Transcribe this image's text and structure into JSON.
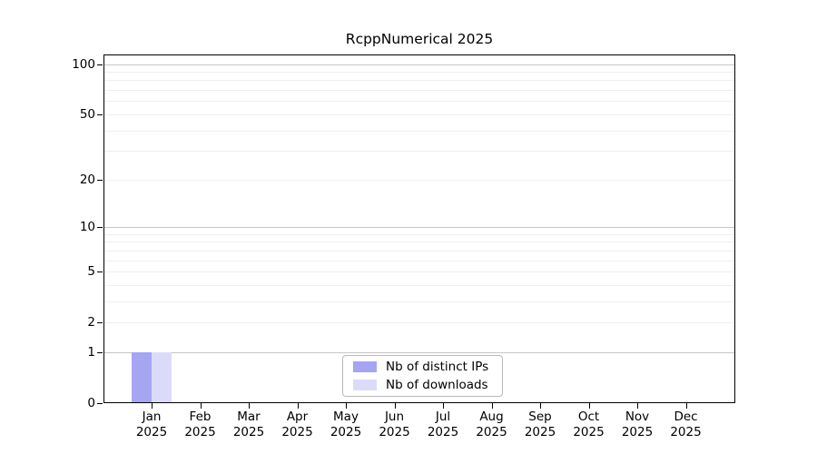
{
  "chart_data": {
    "type": "bar",
    "title": "RcppNumerical 2025",
    "x_labels": [
      {
        "month": "Jan",
        "year": "2025"
      },
      {
        "month": "Feb",
        "year": "2025"
      },
      {
        "month": "Mar",
        "year": "2025"
      },
      {
        "month": "Apr",
        "year": "2025"
      },
      {
        "month": "May",
        "year": "2025"
      },
      {
        "month": "Jun",
        "year": "2025"
      },
      {
        "month": "Jul",
        "year": "2025"
      },
      {
        "month": "Aug",
        "year": "2025"
      },
      {
        "month": "Sep",
        "year": "2025"
      },
      {
        "month": "Oct",
        "year": "2025"
      },
      {
        "month": "Nov",
        "year": "2025"
      },
      {
        "month": "Dec",
        "year": "2025"
      }
    ],
    "series": [
      {
        "name": "Nb of distinct IPs",
        "color": "#a5a5f2",
        "values": [
          1,
          0,
          0,
          0,
          0,
          0,
          0,
          0,
          0,
          0,
          0,
          0
        ]
      },
      {
        "name": "Nb of downloads",
        "color": "#dbdbf9",
        "values": [
          1,
          0,
          0,
          0,
          0,
          0,
          0,
          0,
          0,
          0,
          0,
          0
        ]
      }
    ],
    "yaxis": {
      "scale": "log1p",
      "ylim": [
        0,
        100
      ],
      "tick_labels": [
        0,
        1,
        2,
        5,
        10,
        20,
        50,
        100
      ]
    },
    "grid": {
      "major_lines": [
        1,
        10,
        100
      ],
      "minor_lines": [
        2,
        3,
        4,
        5,
        6,
        7,
        8,
        9,
        20,
        30,
        40,
        50,
        60,
        70,
        80,
        90
      ],
      "major_color": "#c7c7c7",
      "minor_color": "#efefef"
    },
    "legend": {
      "position": "bottom-center",
      "border": true
    },
    "xlabel": "",
    "ylabel": ""
  }
}
